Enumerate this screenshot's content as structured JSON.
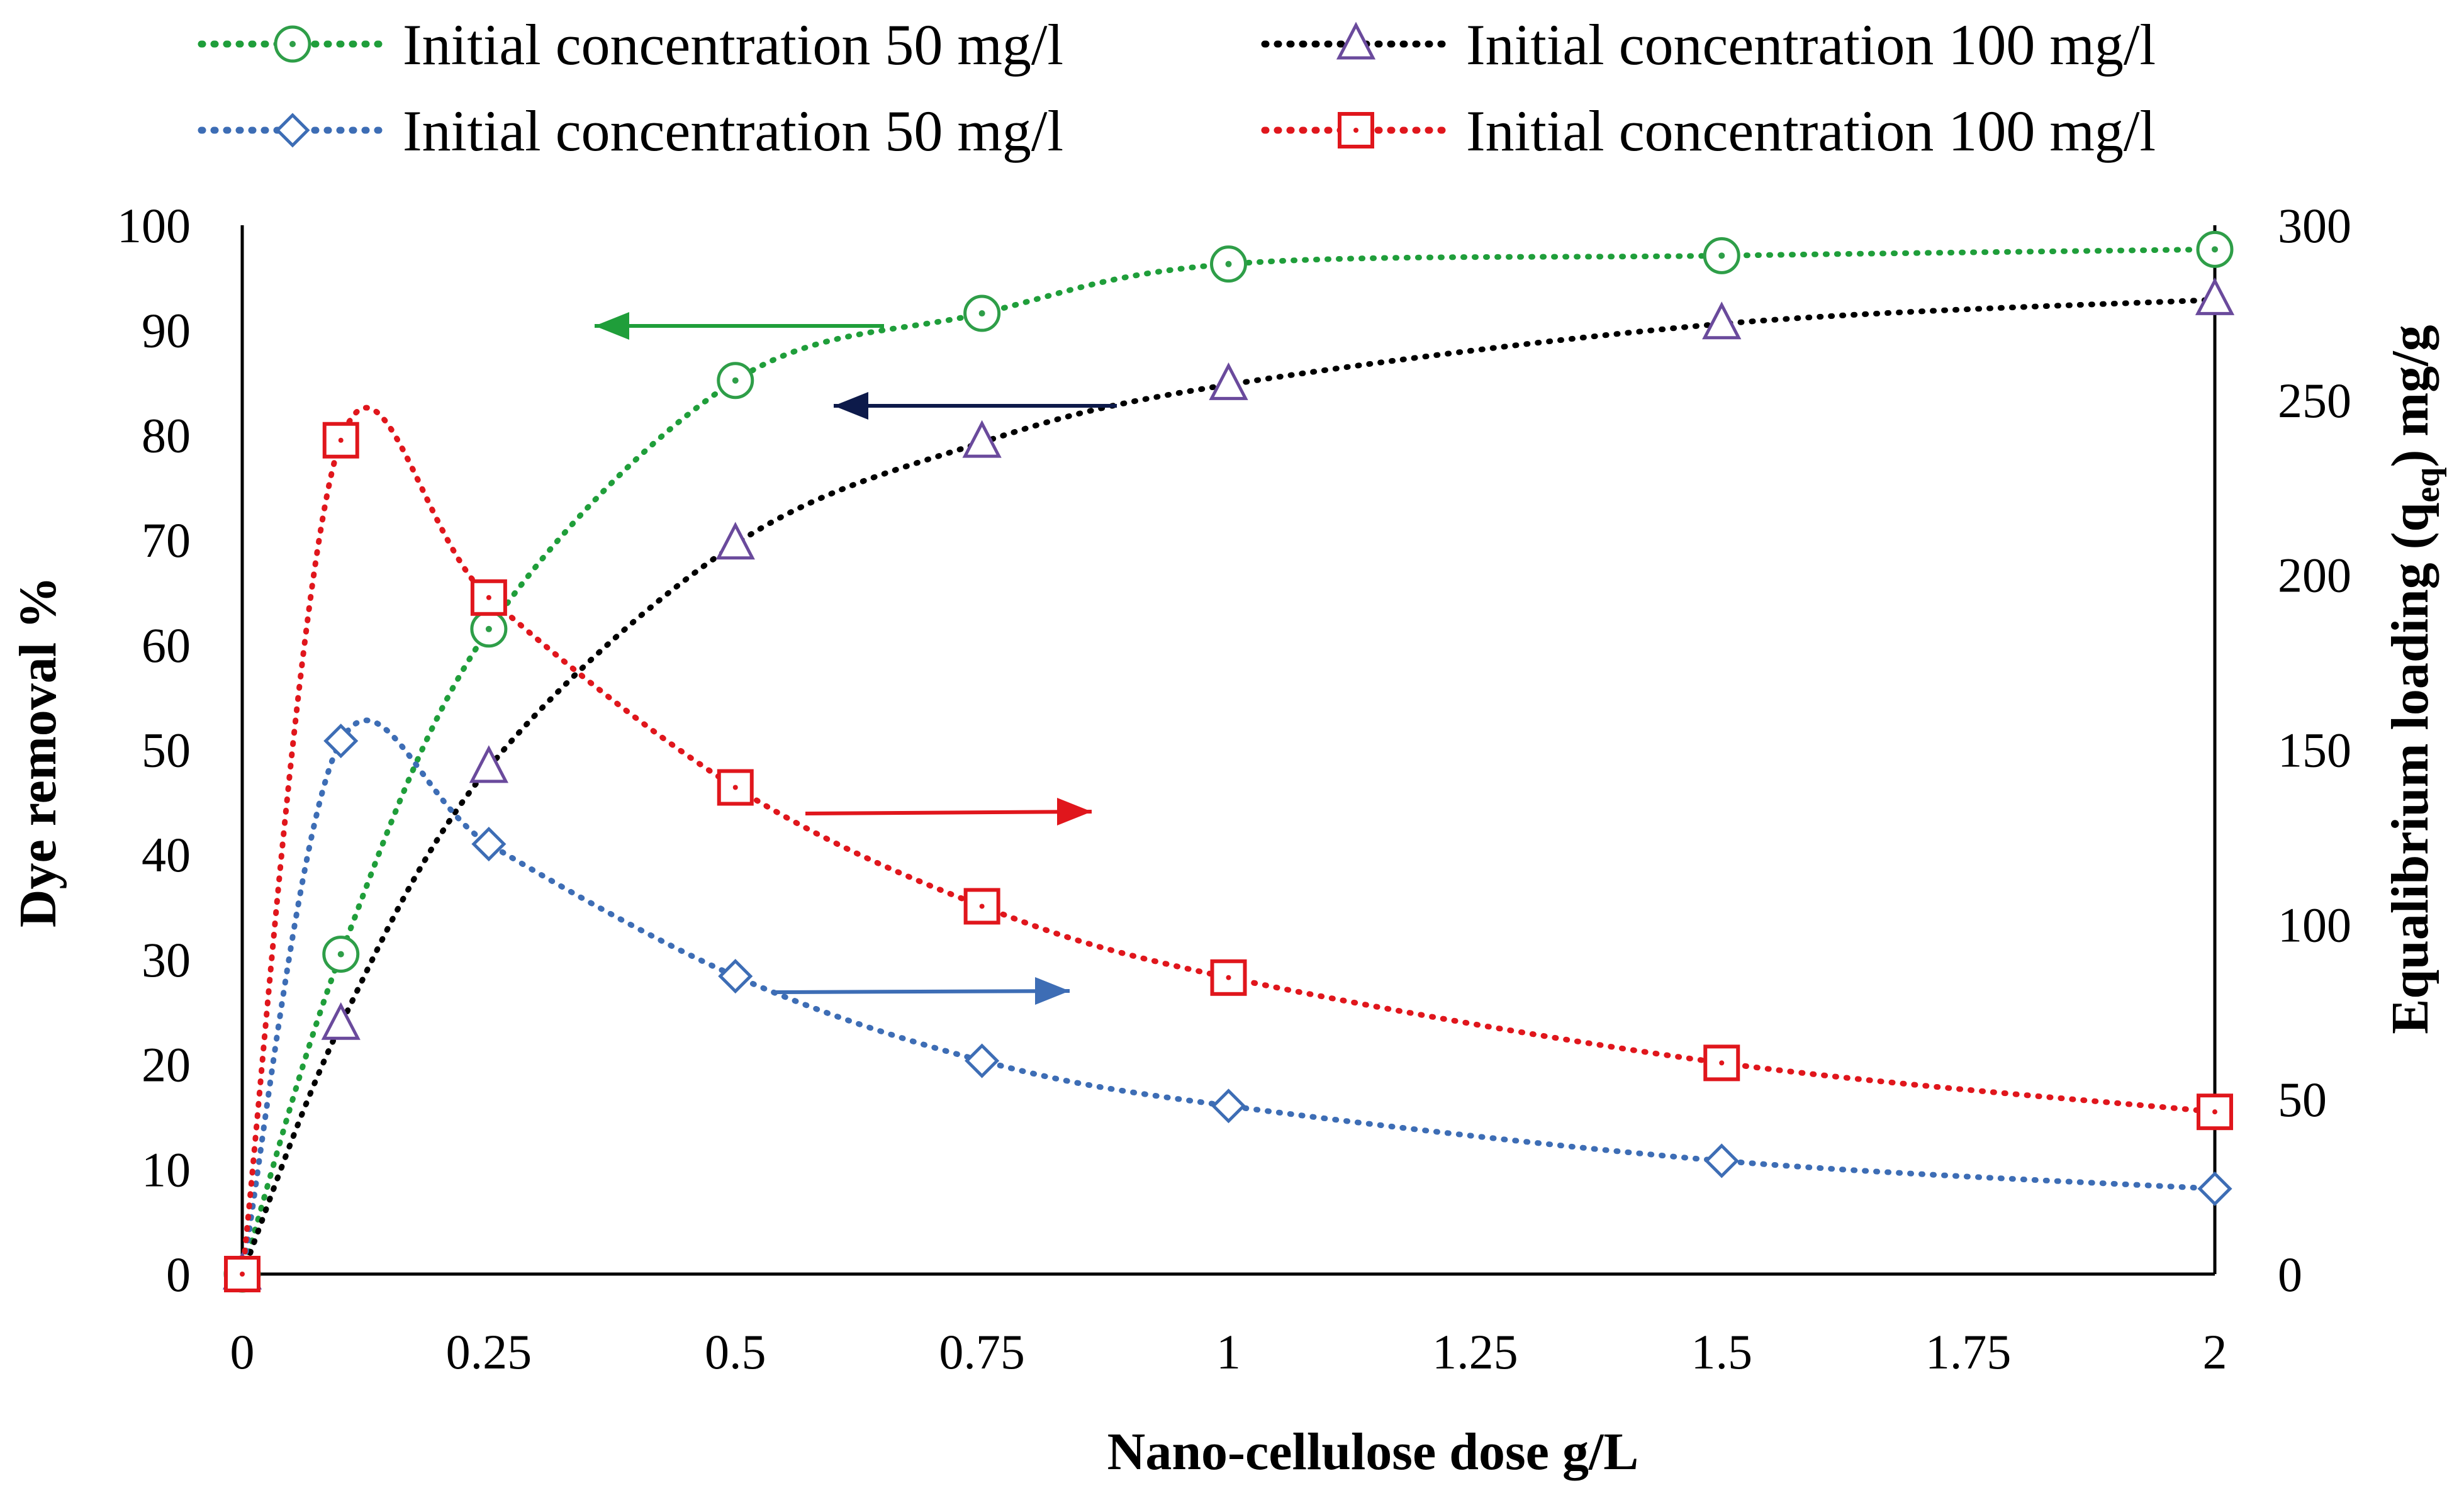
{
  "chart_data": {
    "type": "line",
    "title": "",
    "xlabel": "Nano-cellulose dose g/L",
    "ylabel": "Dye removal %",
    "y2label": "Equalibrium loading (q",
    "y2label_sub": "eq",
    "y2label_end": ") mg/g",
    "xlim": [
      0,
      2
    ],
    "ylim": [
      0,
      100
    ],
    "y2lim": [
      0,
      300
    ],
    "x_ticks": [
      "0",
      "0.25",
      "0.5",
      "0.75",
      "1",
      "1.25",
      "1.5",
      "1.75",
      "2"
    ],
    "y_ticks": [
      "0",
      "10",
      "20",
      "30",
      "40",
      "50",
      "60",
      "70",
      "80",
      "90",
      "100"
    ],
    "y2_ticks": [
      "0",
      "50",
      "100",
      "150",
      "200",
      "250",
      "300"
    ],
    "legend_position": "top",
    "series": [
      {
        "name": "Initial concentration 50 mg/l",
        "axis": "left",
        "marker": "circle",
        "color": "#2e9e48",
        "line_color": "#1f9e3a",
        "x": [
          0,
          0.1,
          0.25,
          0.5,
          0.75,
          1,
          1.5,
          2
        ],
        "values": [
          0,
          30.5,
          61.5,
          85.2,
          91.6,
          96.3,
          97.1,
          97.7
        ]
      },
      {
        "name": "Initial concentration 100 mg/l",
        "axis": "left",
        "marker": "triangle",
        "color": "#6a4a9c",
        "line_color": "#000000",
        "x": [
          0,
          0.1,
          0.25,
          0.5,
          0.75,
          1,
          1.5,
          2
        ],
        "values": [
          0,
          23.8,
          48.3,
          69.6,
          79.3,
          84.8,
          90.6,
          92.9
        ]
      },
      {
        "name": "Initial concentration 50 mg/l",
        "axis": "right",
        "marker": "diamond",
        "color": "#3d6db5",
        "line_color": "#3d6db5",
        "x": [
          0,
          0.1,
          0.25,
          0.5,
          0.75,
          1,
          1.5,
          2
        ],
        "values": [
          0,
          152.5,
          123,
          85.2,
          61,
          48.1,
          32.4,
          24.4
        ]
      },
      {
        "name": "Initial concentration 100 mg/l",
        "axis": "right",
        "marker": "square",
        "color": "#e0161c",
        "line_color": "#e0161c",
        "x": [
          0,
          0.1,
          0.25,
          0.5,
          0.75,
          1,
          1.5,
          2
        ],
        "values": [
          0,
          238.5,
          193.5,
          139.2,
          105.2,
          84.8,
          60.4,
          46.4
        ]
      }
    ],
    "annotations": [
      {
        "type": "arrow",
        "direction": "left",
        "color": "#1f9e3a",
        "target_axis": "left"
      },
      {
        "type": "arrow",
        "direction": "left",
        "color": "#0d1a4a",
        "target_axis": "left"
      },
      {
        "type": "arrow",
        "direction": "right",
        "color": "#e0161c",
        "target_axis": "right"
      },
      {
        "type": "arrow",
        "direction": "right",
        "color": "#3d6db5",
        "target_axis": "right"
      }
    ]
  }
}
